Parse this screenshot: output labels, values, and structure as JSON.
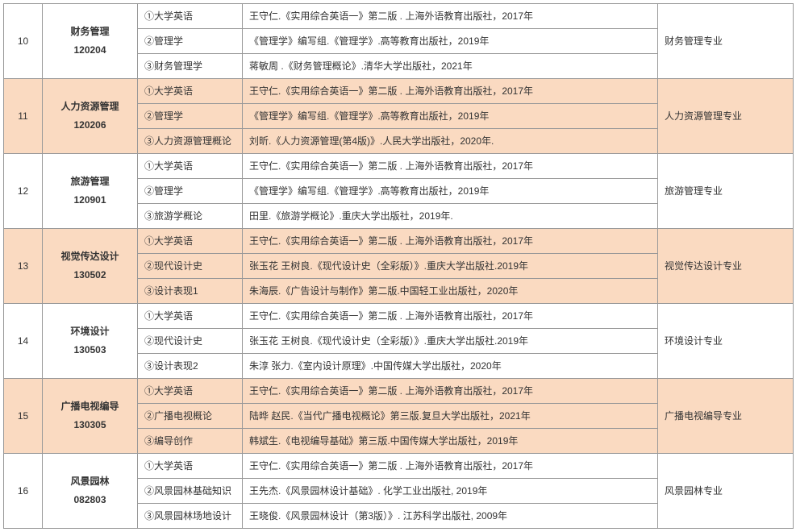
{
  "rows": [
    {
      "num": "10",
      "major": "财务管理",
      "code": "120204",
      "dept": "财务管理专业",
      "shaded": false,
      "courses": [
        {
          "name": "①大学英语",
          "book": "王守仁.《实用综合英语一》第二版 . 上海外语教育出版社，2017年"
        },
        {
          "name": "②管理学",
          "book": "《管理学》编写组.《管理学》.高等教育出版社，2019年"
        },
        {
          "name": "③财务管理学",
          "book": "蒋敏周 .《财务管理概论》.清华大学出版社，2021年"
        }
      ]
    },
    {
      "num": "11",
      "major": "人力资源管理",
      "code": "120206",
      "dept": "人力资源管理专业",
      "shaded": true,
      "courses": [
        {
          "name": "①大学英语",
          "book": "王守仁.《实用综合英语一》第二版 . 上海外语教育出版社，2017年"
        },
        {
          "name": "②管理学",
          "book": "《管理学》编写组.《管理学》.高等教育出版社，2019年"
        },
        {
          "name": "③人力资源管理概论",
          "book": "刘昕.《人力资源管理(第4版)》.人民大学出版社，2020年."
        }
      ]
    },
    {
      "num": "12",
      "major": "旅游管理",
      "code": "120901",
      "dept": "旅游管理专业",
      "shaded": false,
      "courses": [
        {
          "name": "①大学英语",
          "book": "王守仁.《实用综合英语一》第二版 . 上海外语教育出版社，2017年"
        },
        {
          "name": "②管理学",
          "book": "《管理学》编写组.《管理学》.高等教育出版社，2019年"
        },
        {
          "name": "③旅游学概论",
          "book": "田里.《旅游学概论》.重庆大学出版社，2019年."
        }
      ]
    },
    {
      "num": "13",
      "major": "视觉传达设计",
      "code": "130502",
      "dept": "视觉传达设计专业",
      "shaded": true,
      "courses": [
        {
          "name": "①大学英语",
          "book": "王守仁.《实用综合英语一》第二版 . 上海外语教育出版社，2017年"
        },
        {
          "name": "②现代设计史",
          "book": "张玉花 王树良.《现代设计史（全彩版）》.重庆大学出版社.2019年"
        },
        {
          "name": "③设计表现1",
          "book": "朱海辰.《广告设计与制作》第二版.中国轻工业出版社，2020年"
        }
      ]
    },
    {
      "num": "14",
      "major": "环境设计",
      "code": "130503",
      "dept": "环境设计专业",
      "shaded": false,
      "courses": [
        {
          "name": "①大学英语",
          "book": "王守仁.《实用综合英语一》第二版 . 上海外语教育出版社，2017年"
        },
        {
          "name": "②现代设计史",
          "book": "张玉花 王树良.《现代设计史（全彩版）》.重庆大学出版社.2019年"
        },
        {
          "name": "③设计表现2",
          "book": "朱淳 张力.《室内设计原理》.中国传媒大学出版社，2020年"
        }
      ]
    },
    {
      "num": "15",
      "major": "广播电视编导",
      "code": "130305",
      "dept": "广播电视编导专业",
      "shaded": true,
      "courses": [
        {
          "name": "①大学英语",
          "book": "王守仁.《实用综合英语一》第二版 . 上海外语教育出版社，2017年"
        },
        {
          "name": "②广播电视概论",
          "book": "陆晔 赵民.《当代广播电视概论》第三版.复旦大学出版社，2021年"
        },
        {
          "name": "③编导创作",
          "book": "韩斌生.《电视编导基础》第三版.中国传媒大学出版社，2019年"
        }
      ]
    },
    {
      "num": "16",
      "major": "风景园林",
      "code": "082803",
      "dept": "风景园林专业",
      "shaded": false,
      "courses": [
        {
          "name": "①大学英语",
          "book": "王守仁.《实用综合英语一》第二版 . 上海外语教育出版社，2017年"
        },
        {
          "name": "②风景园林基础知识",
          "book": "王先杰.《风景园林设计基础》. 化学工业出版社, 2019年"
        },
        {
          "name": "③风景园林场地设计",
          "book": "王晓俊.《风景园林设计（第3版）》. 江苏科学出版社, 2009年"
        }
      ]
    }
  ]
}
